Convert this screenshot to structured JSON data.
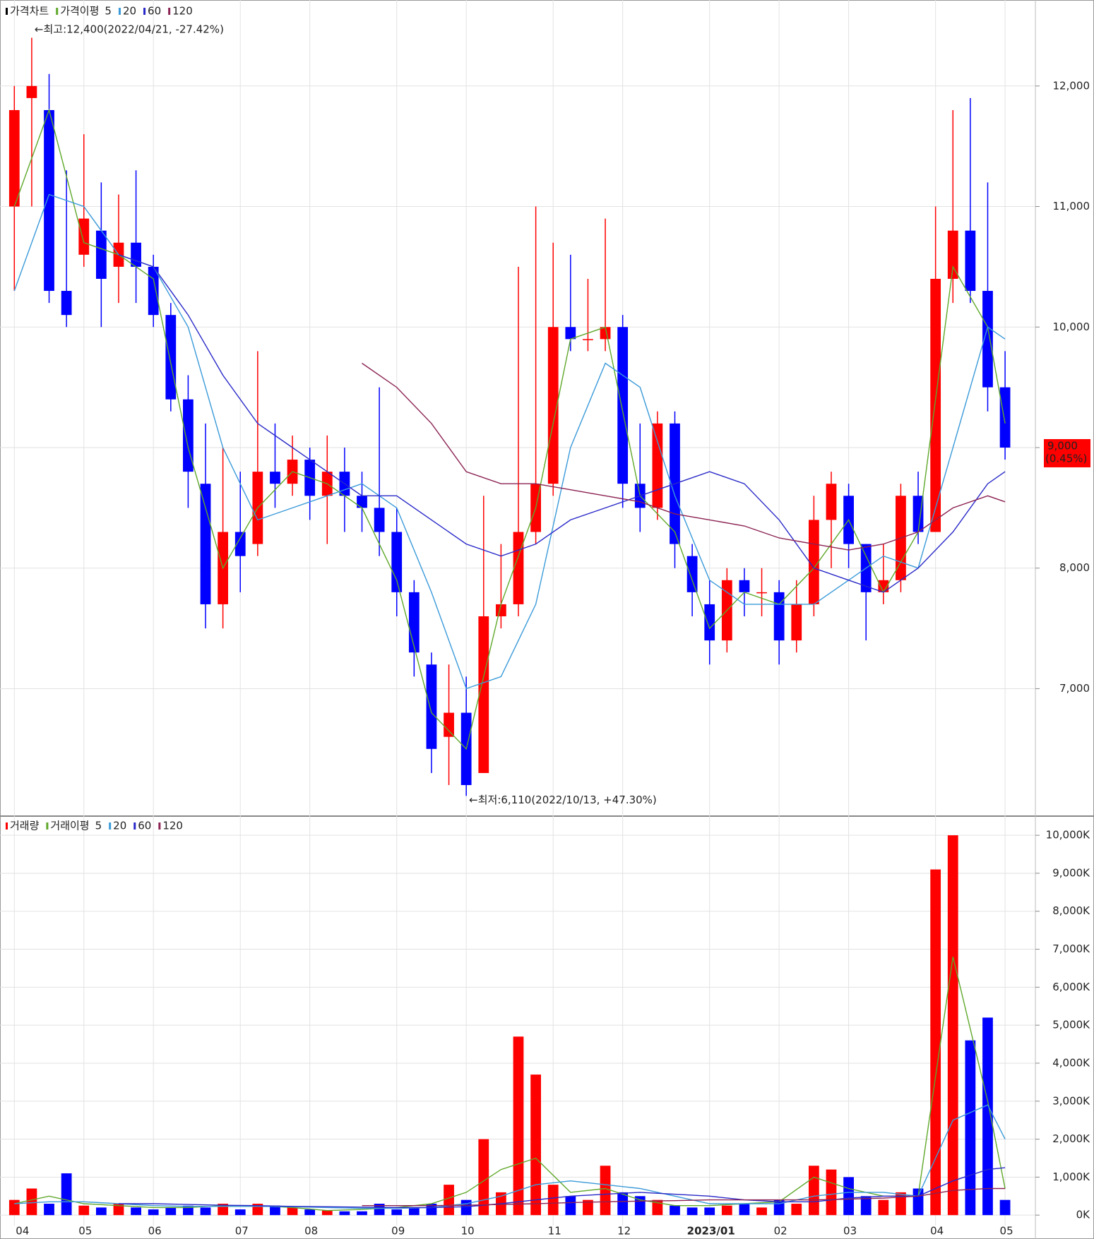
{
  "chart_data": [
    {
      "type": "candlestick",
      "legend_label": "가격차트",
      "ma_label": "가격이평",
      "annotations": [
        "←최고:12,400(2022/04/21, -27.42%)",
        "←최저:6,110(2022/10/13, +47.30%)"
      ],
      "last_price": {
        "value": 9000,
        "label": "9,000",
        "change": "(0.45%)"
      },
      "up_color": "#ff0000",
      "down_color": "#0000ff",
      "xlim": [
        -0.5,
        58.5
      ],
      "xticks": [
        {
          "value": 0,
          "label": "04"
        },
        {
          "value": 4,
          "label": "05"
        },
        {
          "value": 8,
          "label": "06"
        },
        {
          "value": 13,
          "label": "07"
        },
        {
          "value": 17,
          "label": "08"
        },
        {
          "value": 22,
          "label": "09"
        },
        {
          "value": 26,
          "label": "10"
        },
        {
          "value": 31,
          "label": "11"
        },
        {
          "value": 35,
          "label": "12"
        },
        {
          "value": 40,
          "label": "2023/01"
        },
        {
          "value": 44,
          "label": "02"
        },
        {
          "value": 48,
          "label": "03"
        },
        {
          "value": 53,
          "label": "04"
        },
        {
          "value": 57,
          "label": "05"
        }
      ],
      "ylim": [
        5960,
        12690
      ],
      "yticks": [
        {
          "value": 7000,
          "label": "7,000"
        },
        {
          "value": 8000,
          "label": "8,000"
        },
        {
          "value": 9000,
          "label": "9,000"
        },
        {
          "value": 10000,
          "label": "10,000"
        },
        {
          "value": 11000,
          "label": "11,000"
        },
        {
          "value": 12000,
          "label": "12,000"
        }
      ],
      "grid": true,
      "open": [
        11000,
        11900,
        11800,
        10300,
        10600,
        10800,
        10500,
        10700,
        10500,
        10100,
        9400,
        8700,
        7700,
        8300,
        8200,
        8800,
        8700,
        8900,
        8600,
        8800,
        8600,
        8500,
        8300,
        7800,
        7200,
        6600,
        6800,
        6300,
        7600,
        7700,
        8300,
        8700,
        10000,
        9900,
        9900,
        10000,
        8700,
        8500,
        9200,
        8100,
        7700,
        7400,
        7900,
        7800,
        7800,
        7400,
        7700,
        8400,
        8600,
        8200,
        7800,
        7900,
        8600,
        8300,
        10400,
        10800,
        10300,
        9500
      ],
      "high": [
        12000,
        12400,
        12100,
        11300,
        11600,
        11200,
        11100,
        11300,
        10600,
        10200,
        9600,
        9200,
        9000,
        8800,
        9800,
        9200,
        9100,
        9000,
        9100,
        9000,
        8800,
        9500,
        8500,
        7900,
        7300,
        7200,
        7100,
        8600,
        8200,
        10500,
        11000,
        10700,
        10600,
        10400,
        10900,
        10100,
        9200,
        9300,
        9300,
        8200,
        7900,
        8000,
        8000,
        8000,
        7900,
        7900,
        8600,
        8800,
        8700,
        8200,
        8200,
        8700,
        8800,
        11000,
        11800,
        11900,
        11200,
        9800
      ],
      "low": [
        10300,
        11000,
        10200,
        10000,
        10500,
        10000,
        10200,
        10200,
        10000,
        9300,
        8500,
        7500,
        7500,
        7800,
        8100,
        8500,
        8600,
        8400,
        8200,
        8300,
        8300,
        8100,
        7600,
        7100,
        6300,
        6200,
        6110,
        6300,
        7500,
        7600,
        8200,
        8600,
        9800,
        9800,
        9800,
        8500,
        8300,
        8400,
        8000,
        7600,
        7200,
        7300,
        7600,
        7600,
        7200,
        7300,
        7600,
        8000,
        8000,
        7400,
        7700,
        7800,
        8200,
        8300,
        10200,
        10200,
        9300,
        8900
      ],
      "close": [
        11800,
        12000,
        10300,
        10100,
        10900,
        10400,
        10700,
        10500,
        10100,
        9400,
        8800,
        7700,
        8300,
        8100,
        8800,
        8700,
        8900,
        8600,
        8800,
        8600,
        8500,
        8300,
        7800,
        7300,
        6500,
        6800,
        6200,
        7600,
        7700,
        8300,
        8700,
        10000,
        9900,
        9900,
        10000,
        8700,
        8500,
        9200,
        8200,
        7800,
        7400,
        7900,
        7800,
        7800,
        7400,
        7700,
        8400,
        8700,
        8200,
        7800,
        7900,
        8600,
        8300,
        10400,
        10800,
        10300,
        9500,
        9000
      ],
      "ma_x": [
        0,
        2,
        4,
        6,
        8,
        10,
        12,
        14,
        16,
        18,
        20,
        22,
        24,
        26,
        28,
        30,
        32,
        34,
        36,
        38,
        40,
        42,
        44,
        46,
        48,
        50,
        52,
        54,
        56,
        57
      ],
      "series": [
        {
          "name": "5",
          "color": "#5fa82a",
          "values": [
            11000,
            11800,
            10700,
            10600,
            10400,
            9000,
            8000,
            8500,
            8800,
            8700,
            8500,
            7900,
            6800,
            6500,
            7700,
            8500,
            9900,
            10000,
            8600,
            8300,
            7500,
            7800,
            7700,
            8000,
            8400,
            7800,
            8300,
            10500,
            10000,
            9200
          ]
        },
        {
          "name": "20",
          "color": "#3a9ad9",
          "values": [
            10300,
            11100,
            11000,
            10600,
            10500,
            10000,
            9000,
            8400,
            8500,
            8600,
            8700,
            8500,
            7800,
            7000,
            7100,
            7700,
            9000,
            9700,
            9500,
            8600,
            7900,
            7700,
            7700,
            7700,
            7900,
            8100,
            8000,
            9000,
            10000,
            9900
          ]
        },
        {
          "name": "60",
          "color": "#2828c8",
          "values": [
            null,
            null,
            null,
            10600,
            10500,
            10100,
            9600,
            9200,
            9000,
            8800,
            8600,
            8600,
            8400,
            8200,
            8100,
            8200,
            8400,
            8500,
            8600,
            8700,
            8800,
            8700,
            8400,
            8000,
            7900,
            7800,
            8000,
            8300,
            8700,
            8800
          ]
        },
        {
          "name": "120",
          "color": "#8b2252",
          "values": [
            null,
            null,
            null,
            null,
            null,
            null,
            null,
            null,
            null,
            null,
            9700,
            9500,
            9200,
            8800,
            8700,
            8700,
            8650,
            8600,
            8550,
            8450,
            8400,
            8350,
            8250,
            8200,
            8150,
            8200,
            8300,
            8500,
            8600,
            8550
          ]
        }
      ]
    },
    {
      "type": "bar",
      "legend_label": "거래량",
      "ma_label": "거래이평",
      "ylim": [
        -220,
        10430
      ],
      "yticks": [
        {
          "value": 0,
          "label": "0K"
        },
        {
          "value": 1000,
          "label": "1,000K"
        },
        {
          "value": 2000,
          "label": "2,000K"
        },
        {
          "value": 3000,
          "label": "3,000K"
        },
        {
          "value": 4000,
          "label": "4,000K"
        },
        {
          "value": 5000,
          "label": "5,000K"
        },
        {
          "value": 6000,
          "label": "6,000K"
        },
        {
          "value": 7000,
          "label": "7,000K"
        },
        {
          "value": 8000,
          "label": "8,000K"
        },
        {
          "value": 9000,
          "label": "9,000K"
        },
        {
          "value": 10000,
          "label": "10,000K"
        }
      ],
      "values": [
        400,
        700,
        300,
        1100,
        250,
        200,
        300,
        200,
        150,
        200,
        250,
        200,
        300,
        150,
        300,
        250,
        200,
        150,
        120,
        100,
        100,
        300,
        150,
        200,
        300,
        800,
        400,
        2000,
        600,
        4700,
        3700,
        800,
        500,
        400,
        1300,
        600,
        500,
        400,
        250,
        200,
        200,
        250,
        300,
        200,
        400,
        300,
        1300,
        1200,
        1000,
        500,
        400,
        600,
        700,
        9100,
        10000,
        4600,
        5200,
        400
      ],
      "series": [
        {
          "name": "5",
          "color": "#5fa82a",
          "values": [
            300,
            500,
            300,
            250,
            200,
            200,
            250,
            250,
            200,
            120,
            150,
            200,
            300,
            600,
            1200,
            1500,
            600,
            700,
            400,
            250,
            250,
            300,
            350,
            1000,
            700,
            500,
            500,
            6800,
            3000,
            700
          ]
        },
        {
          "name": "20",
          "color": "#3a9ad9",
          "values": [
            300,
            350,
            350,
            300,
            250,
            230,
            230,
            230,
            220,
            200,
            180,
            180,
            200,
            300,
            500,
            800,
            900,
            800,
            700,
            500,
            300,
            300,
            300,
            500,
            600,
            600,
            500,
            2500,
            2900,
            2000
          ]
        },
        {
          "name": "60",
          "color": "#2828c8",
          "values": [
            null,
            null,
            null,
            300,
            300,
            280,
            260,
            250,
            230,
            220,
            210,
            200,
            200,
            220,
            300,
            400,
            500,
            550,
            600,
            550,
            500,
            400,
            350,
            350,
            450,
            500,
            500,
            900,
            1200,
            1250
          ]
        },
        {
          "name": "120",
          "color": "#8b2252",
          "values": [
            null,
            null,
            null,
            null,
            null,
            null,
            null,
            null,
            null,
            null,
            250,
            250,
            250,
            260,
            280,
            300,
            330,
            350,
            370,
            380,
            400,
            400,
            400,
            400,
            420,
            450,
            500,
            650,
            700,
            700
          ]
        }
      ]
    }
  ]
}
